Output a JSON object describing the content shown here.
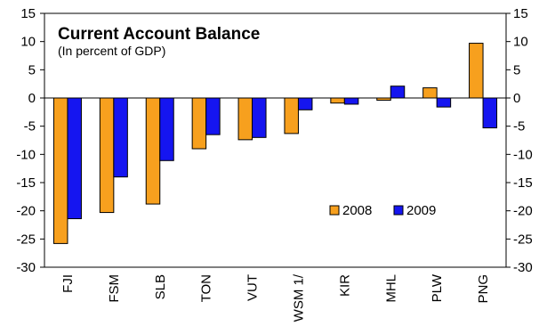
{
  "chart_data": {
    "type": "bar",
    "title": "Current Account Balance",
    "subtitle": "(In percent of GDP)",
    "categories": [
      "FJI",
      "FSM",
      "SLB",
      "TON",
      "VUT",
      "WSM 1/",
      "KIR",
      "MHL",
      "PLW",
      "PNG"
    ],
    "series": [
      {
        "name": "2008",
        "color": "#F7A01E",
        "values": [
          -25.8,
          -20.3,
          -18.8,
          -9.0,
          -7.4,
          -6.3,
          -0.9,
          -0.4,
          1.8,
          9.7
        ]
      },
      {
        "name": "2009",
        "color": "#1515F0",
        "values": [
          -21.4,
          -14.0,
          -11.1,
          -6.5,
          -7.0,
          -2.1,
          -1.1,
          2.1,
          -1.6,
          -5.3
        ]
      }
    ],
    "ylim": [
      -30,
      15
    ],
    "yticks": [
      15,
      10,
      5,
      0,
      -5,
      -10,
      -15,
      -20,
      -25,
      -30
    ],
    "right_axis_ticks": [
      "15",
      "10",
      "5",
      "0",
      "-5",
      "-10",
      "-15",
      "-20",
      "-25",
      "-30"
    ],
    "grid": false,
    "legend_position": "lower-right"
  }
}
